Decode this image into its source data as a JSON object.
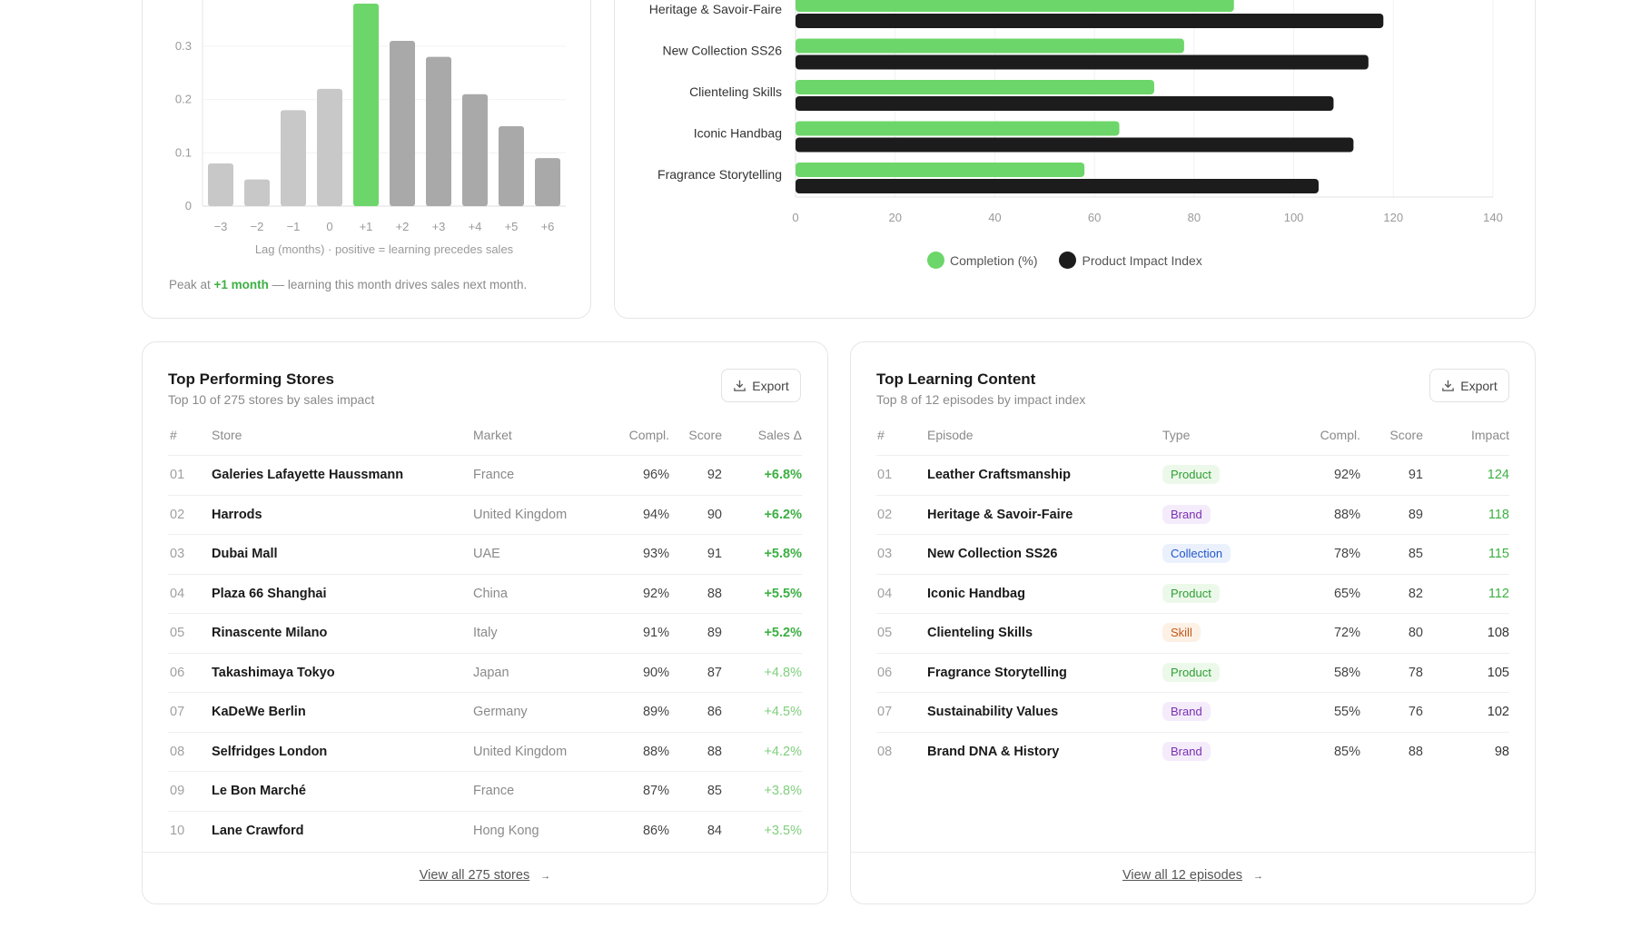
{
  "colors": {
    "green": "#6dd66a",
    "dark": "#1c1c1c",
    "bar_light": "#c8c8c8",
    "bar_mid": "#a9a9a9",
    "accent_text": "#3cb043"
  },
  "lag_chart": {
    "chart_data": {
      "type": "bar",
      "categories": [
        "−3",
        "−2",
        "−1",
        "0",
        "+1",
        "+2",
        "+3",
        "+4",
        "+5",
        "+6"
      ],
      "values": [
        0.08,
        0.05,
        0.18,
        0.22,
        0.38,
        0.31,
        0.28,
        0.21,
        0.15,
        0.09
      ],
      "highlight": "+1",
      "y_ticks": [
        "0",
        "0.1",
        "0.2",
        "0.3"
      ],
      "ylim": [
        0,
        0.38
      ],
      "xlabel": "Lag (months) · positive = learning precedes sales",
      "grid": true
    },
    "caption_prefix": "Peak at ",
    "caption_highlight": "+1 month",
    "caption_suffix": " — learning this month drives sales next month."
  },
  "content_chart": {
    "chart_data": {
      "type": "bar",
      "orientation": "horizontal",
      "categories": [
        "Heritage & Savoir-Faire",
        "New Collection SS26",
        "Clienteling Skills",
        "Iconic Handbag",
        "Fragrance Storytelling"
      ],
      "series": [
        {
          "name": "Completion (%)",
          "values": [
            88,
            78,
            72,
            65,
            58
          ],
          "color": "#6dd66a"
        },
        {
          "name": "Product Impact Index",
          "values": [
            118,
            115,
            108,
            112,
            105
          ],
          "color": "#1c1c1c"
        }
      ],
      "x_ticks": [
        "0",
        "20",
        "40",
        "60",
        "80",
        "100",
        "120",
        "140"
      ],
      "xlim": [
        0,
        140
      ],
      "legend": "bottom",
      "grid": true
    }
  },
  "stores": {
    "title": "Top Performing Stores",
    "subtitle": "Top 10 of 275 stores by sales impact",
    "export_label": "Export",
    "headers": [
      "#",
      "Store",
      "Market",
      "Compl.",
      "Score",
      "Sales Δ"
    ],
    "rows": [
      [
        "01",
        "Galeries Lafayette Haussmann",
        "France",
        "96%",
        "92",
        "+6.8%"
      ],
      [
        "02",
        "Harrods",
        "United Kingdom",
        "94%",
        "90",
        "+6.2%"
      ],
      [
        "03",
        "Dubai Mall",
        "UAE",
        "93%",
        "91",
        "+5.8%"
      ],
      [
        "04",
        "Plaza 66 Shanghai",
        "China",
        "92%",
        "88",
        "+5.5%"
      ],
      [
        "05",
        "Rinascente Milano",
        "Italy",
        "91%",
        "89",
        "+5.2%"
      ],
      [
        "06",
        "Takashimaya Tokyo",
        "Japan",
        "90%",
        "87",
        "+4.8%"
      ],
      [
        "07",
        "KaDeWe Berlin",
        "Germany",
        "89%",
        "86",
        "+4.5%"
      ],
      [
        "08",
        "Selfridges London",
        "United Kingdom",
        "88%",
        "88",
        "+4.2%"
      ],
      [
        "09",
        "Le Bon Marché",
        "France",
        "87%",
        "85",
        "+3.8%"
      ],
      [
        "10",
        "Lane Crawford",
        "Hong Kong",
        "86%",
        "84",
        "+3.5%"
      ]
    ],
    "view_all": "View all 275 stores"
  },
  "content": {
    "title": "Top Learning Content",
    "subtitle": "Top 8 of 12 episodes by impact index",
    "export_label": "Export",
    "headers": [
      "#",
      "Episode",
      "Type",
      "Compl.",
      "Score",
      "Impact"
    ],
    "rows": [
      [
        "01",
        "Leather Craftsmanship",
        "Product",
        "92%",
        "91",
        "124"
      ],
      [
        "02",
        "Heritage & Savoir-Faire",
        "Brand",
        "88%",
        "89",
        "118"
      ],
      [
        "03",
        "New Collection SS26",
        "Collection",
        "78%",
        "85",
        "115"
      ],
      [
        "04",
        "Iconic Handbag",
        "Product",
        "65%",
        "82",
        "112"
      ],
      [
        "05",
        "Clienteling Skills",
        "Skill",
        "72%",
        "80",
        "108"
      ],
      [
        "06",
        "Fragrance Storytelling",
        "Product",
        "58%",
        "78",
        "105"
      ],
      [
        "07",
        "Sustainability Values",
        "Brand",
        "55%",
        "76",
        "102"
      ],
      [
        "08",
        "Brand DNA & History",
        "Brand",
        "85%",
        "88",
        "98"
      ]
    ],
    "type_colors": {
      "Product": {
        "bg": "#ecf9ea",
        "fg": "#2f9e34"
      },
      "Brand": {
        "bg": "#f4ecfb",
        "fg": "#7a2fb0"
      },
      "Collection": {
        "bg": "#eaf1fd",
        "fg": "#2456c9"
      },
      "Skill": {
        "bg": "#fdf1e6",
        "fg": "#c2561a"
      }
    },
    "view_all": "View all 12 episodes"
  }
}
